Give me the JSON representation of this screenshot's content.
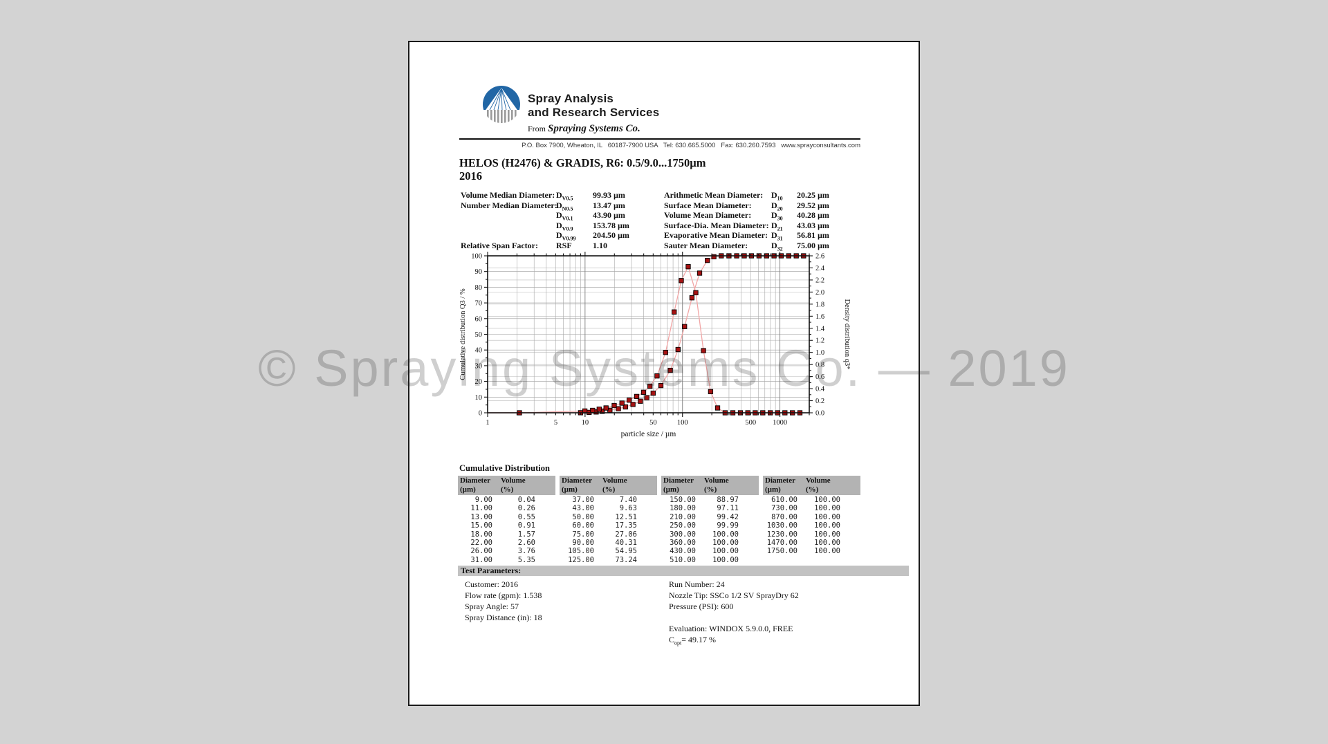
{
  "header": {
    "brand_line1": "Spray Analysis",
    "brand_line2": "and Research Services",
    "from_prefix": "From ",
    "from_company": "Spraying Systems Co.",
    "address": "P.O. Box 7900, Wheaton, IL   60187-7900 USA   Tel: 630.665.5000   Fax: 630.260.7593   www.sprayconsultants.com"
  },
  "title_line1": "HELOS (H2476) & GRADIS, R6: 0.5/9.0...1750µm",
  "title_line2": "2016",
  "stats": {
    "left": [
      {
        "label": "Volume Median Diameter:",
        "sym": "D_{V0.5}",
        "value": "99.93 µm"
      },
      {
        "label": "Number Median Diameter:",
        "sym": "D_{N0.5}",
        "value": "13.47 µm"
      },
      {
        "label": "",
        "sym": "D_{V0.1}",
        "value": "43.90 µm"
      },
      {
        "label": "",
        "sym": "D_{V0.9}",
        "value": "153.78 µm"
      },
      {
        "label": "",
        "sym": "D_{V0.99}",
        "value": "204.50 µm"
      },
      {
        "label": "Relative Span Factor:",
        "sym": "RSF",
        "value": "1.10"
      }
    ],
    "right": [
      {
        "label": "Arithmetic Mean Diameter:",
        "sym": "D_{10}",
        "value": "20.25 µm"
      },
      {
        "label": "Surface Mean Diameter:",
        "sym": "D_{20}",
        "value": "29.52 µm"
      },
      {
        "label": "Volume Mean Diameter:",
        "sym": "D_{30}",
        "value": "40.28 µm"
      },
      {
        "label": "Surface-Dia. Mean Diameter:",
        "sym": "D_{21}",
        "value": "43.03 µm"
      },
      {
        "label": "Evaporative Mean Diameter:",
        "sym": "D_{31}",
        "value": "56.81 µm"
      },
      {
        "label": "Sauter Mean Diameter:",
        "sym": "D_{32}",
        "value": "75.00 µm"
      }
    ]
  },
  "chart_data": {
    "type": "line",
    "xlabel": "particle size / µm",
    "ylabel_left": "Cumulative distribution Q3 / %",
    "ylabel_right": "Density distribution q3*",
    "x_scale": "log",
    "xlim": [
      1,
      2000
    ],
    "ylim_left": [
      0,
      100
    ],
    "ylim_right": [
      0,
      2.6
    ],
    "x_ticks_labeled": [
      1,
      5,
      10,
      50,
      100,
      500,
      1000
    ],
    "y_ticks_left": [
      0,
      10,
      20,
      30,
      40,
      50,
      60,
      70,
      80,
      90,
      100
    ],
    "y_ticks_right": [
      0.0,
      0.2,
      0.4,
      0.6,
      0.8,
      1.0,
      1.2,
      1.4,
      1.6,
      1.8,
      2.0,
      2.2,
      2.4,
      2.6
    ],
    "grid": true,
    "marker_color": "#a61212",
    "marker_edge_color": "#000000",
    "line_color": "#f2a6a6",
    "series": [
      {
        "name": "Cumulative distribution Q3",
        "axis": "left",
        "x": [
          9,
          11,
          13,
          15,
          18,
          22,
          26,
          31,
          37,
          43,
          50,
          60,
          75,
          90,
          105,
          125,
          150,
          180,
          210,
          250,
          300,
          360,
          430,
          510,
          610,
          730,
          870,
          1030,
          1230,
          1470,
          1750
        ],
        "y": [
          0.04,
          0.26,
          0.55,
          0.91,
          1.57,
          2.6,
          3.76,
          5.35,
          7.4,
          9.63,
          12.51,
          17.35,
          27.06,
          40.31,
          54.95,
          73.24,
          88.97,
          97.11,
          99.42,
          99.99,
          100,
          100,
          100,
          100,
          100,
          100,
          100,
          100,
          100,
          100,
          100
        ]
      },
      {
        "name": "Density distribution q3*",
        "axis": "right",
        "x": [
          2.12,
          9.95,
          11.96,
          13.96,
          16.43,
          19.9,
          23.92,
          28.39,
          33.87,
          39.89,
          46.37,
          54.77,
          67.08,
          82.16,
          97.21,
          114.56,
          136.93,
          164.32,
          194.42,
          229.13,
          273.86,
          328.63,
          393.19,
          468.29,
          557.76,
          667.08,
          796.87,
          946.57,
          1125.43,
          1344.25,
          1603.9
        ],
        "y": [
          0,
          0.03,
          0.04,
          0.06,
          0.08,
          0.12,
          0.16,
          0.21,
          0.27,
          0.34,
          0.44,
          0.61,
          1.0,
          1.67,
          2.19,
          2.42,
          1.99,
          1.03,
          0.35,
          0.08,
          0,
          0,
          0,
          0,
          0,
          0,
          0,
          0,
          0,
          0,
          0
        ]
      }
    ]
  },
  "table": {
    "title": "Cumulative Distribution",
    "header": {
      "c1a": "Diameter",
      "c1b": "(µm)",
      "c2a": "Volume",
      "c2b": "(%)"
    },
    "groups": [
      {
        "rows": [
          [
            "9.00",
            "0.04"
          ],
          [
            "11.00",
            "0.26"
          ],
          [
            "13.00",
            "0.55"
          ],
          [
            "15.00",
            "0.91"
          ],
          [
            "18.00",
            "1.57"
          ],
          [
            "22.00",
            "2.60"
          ],
          [
            "26.00",
            "3.76"
          ],
          [
            "31.00",
            "5.35"
          ]
        ]
      },
      {
        "rows": [
          [
            "37.00",
            "7.40"
          ],
          [
            "43.00",
            "9.63"
          ],
          [
            "50.00",
            "12.51"
          ],
          [
            "60.00",
            "17.35"
          ],
          [
            "75.00",
            "27.06"
          ],
          [
            "90.00",
            "40.31"
          ],
          [
            "105.00",
            "54.95"
          ],
          [
            "125.00",
            "73.24"
          ]
        ]
      },
      {
        "rows": [
          [
            "150.00",
            "88.97"
          ],
          [
            "180.00",
            "97.11"
          ],
          [
            "210.00",
            "99.42"
          ],
          [
            "250.00",
            "99.99"
          ],
          [
            "300.00",
            "100.00"
          ],
          [
            "360.00",
            "100.00"
          ],
          [
            "430.00",
            "100.00"
          ],
          [
            "510.00",
            "100.00"
          ]
        ]
      },
      {
        "rows": [
          [
            "610.00",
            "100.00"
          ],
          [
            "730.00",
            "100.00"
          ],
          [
            "870.00",
            "100.00"
          ],
          [
            "1030.00",
            "100.00"
          ],
          [
            "1230.00",
            "100.00"
          ],
          [
            "1470.00",
            "100.00"
          ],
          [
            "1750.00",
            "100.00"
          ]
        ]
      }
    ]
  },
  "test_parameters": {
    "heading": "Test Parameters:",
    "left": [
      "Customer: 2016",
      "Flow rate (gpm): 1.538",
      "Spray Angle: 57",
      "Spray Distance (in): 18"
    ],
    "right": [
      "Run Number: 24",
      "Nozzle Tip: SSCo 1/2 SV SprayDry 62",
      "Pressure (PSI): 600",
      "",
      "Evaluation: WINDOX 5.9.0.0, FREE",
      "C_{opt}= 49.17 %"
    ]
  },
  "watermark": "© Spraying Systems Co. — 2019",
  "colors": {
    "logo_blue": "#2166a5",
    "logo_gray": "#9a9a9a",
    "table_header_bg": "#b3b3b3",
    "params_bar_bg": "#c2c2c2"
  }
}
